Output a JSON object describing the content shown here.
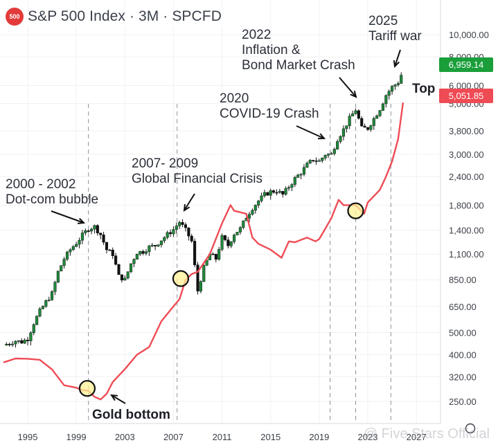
{
  "header": {
    "badge": "500",
    "title": "S&P 500 Index · 3M · SPCFD"
  },
  "price_tags": {
    "spx": {
      "label": "6,959.14",
      "color": "#1a9e3a"
    },
    "gold": {
      "label": "5,051.85",
      "color": "#ef4b55"
    }
  },
  "annotations": {
    "a2025": "2025\nTariff war",
    "top": "Top",
    "a2022": "2022\nInflation &\nBond Market Crash",
    "a2020": "2020\nCOVID-19 Crash",
    "a2007": "2007- 2009\nGlobal Financial Crisis",
    "a2000": "2000 - 2002\nDot-com bubble",
    "gold_bottom": "Gold bottom"
  },
  "watermark": "@ Five Stars Official",
  "icons": [
    "five-hundred-badge-icon",
    "settings-icon"
  ],
  "chart_data": {
    "type": "line",
    "title": "S&P 500 Index · 3M · SPCFD",
    "yscale": "log",
    "ylim": [
      230,
      11500
    ],
    "xlim": [
      1993.0,
      2025.9
    ],
    "y_ticks": [
      10000,
      8000,
      6000,
      5000,
      3800,
      3000,
      2400,
      1800,
      1400,
      1100,
      850,
      650,
      500,
      400,
      320,
      250
    ],
    "y_tick_labels": [
      "10,000.00",
      "8,000.00",
      "6,000.00",
      "5,000.00",
      "3,800.00",
      "3,000.00",
      "2,400.00",
      "1,800.00",
      "1,400.00",
      "1,100.00",
      "850.00",
      "650.00",
      "500.00",
      "400.00",
      "320.00",
      "250.00"
    ],
    "x_ticks": [
      1995,
      1999,
      2003,
      2007,
      2011,
      2015,
      2019,
      2023,
      2027
    ],
    "x_tick_labels": [
      "1995",
      "1999",
      "2003",
      "2007",
      "2011",
      "2015",
      "2019",
      "2023",
      "2027"
    ],
    "grid": true,
    "series": [
      {
        "name": "S&P 500",
        "color": "#222222",
        "style": "candlestick",
        "x": [
          1993.0,
          1993.5,
          1994.0,
          1994.5,
          1995.0,
          1995.5,
          1996.0,
          1996.5,
          1997.0,
          1997.5,
          1998.0,
          1998.5,
          1999.0,
          1999.5,
          2000.0,
          2000.5,
          2001.0,
          2001.5,
          2002.0,
          2002.5,
          2003.0,
          2003.5,
          2004.0,
          2004.5,
          2005.0,
          2005.5,
          2006.0,
          2006.5,
          2007.0,
          2007.5,
          2008.0,
          2008.5,
          2009.0,
          2009.5,
          2010.0,
          2010.5,
          2011.0,
          2011.5,
          2012.0,
          2012.5,
          2013.0,
          2013.5,
          2014.0,
          2014.5,
          2015.0,
          2015.5,
          2016.0,
          2016.5,
          2017.0,
          2017.5,
          2018.0,
          2018.5,
          2019.0,
          2019.5,
          2020.0,
          2020.5,
          2021.0,
          2021.5,
          2022.0,
          2022.5,
          2023.0,
          2023.5,
          2024.0,
          2024.5,
          2025.0,
          2025.5,
          2025.9
        ],
        "values": [
          440,
          450,
          460,
          455,
          470,
          550,
          620,
          680,
          740,
          920,
          1050,
          1150,
          1230,
          1330,
          1420,
          1450,
          1340,
          1150,
          1100,
          880,
          850,
          1000,
          1120,
          1130,
          1180,
          1200,
          1270,
          1340,
          1410,
          1520,
          1400,
          1250,
          760,
          960,
          1100,
          1050,
          1300,
          1200,
          1350,
          1420,
          1600,
          1750,
          1880,
          2000,
          2060,
          2080,
          2000,
          2170,
          2350,
          2500,
          2700,
          2850,
          2800,
          3000,
          3000,
          3500,
          3850,
          4300,
          4700,
          3900,
          3900,
          4300,
          4750,
          5450,
          5900,
          6200,
          6959
        ]
      },
      {
        "name": "Gold",
        "color": "#ef4b55",
        "style": "line",
        "x": [
          1993.0,
          1994.0,
          1995.0,
          1996.0,
          1997.0,
          1998.0,
          1999.0,
          1999.5,
          2000.0,
          2000.5,
          2001.0,
          2001.5,
          2002.0,
          2003.0,
          2004.0,
          2005.0,
          2006.0,
          2007.0,
          2007.5,
          2008.0,
          2008.5,
          2009.0,
          2010.0,
          2011.0,
          2011.7,
          2012.0,
          2013.0,
          2013.5,
          2014.0,
          2015.0,
          2015.9,
          2016.5,
          2017.0,
          2018.0,
          2018.7,
          2019.0,
          2019.5,
          2020.0,
          2020.6,
          2021.0,
          2021.5,
          2022.0,
          2022.7,
          2023.0,
          2024.0,
          2024.5,
          2025.0,
          2025.5,
          2025.9
        ],
        "values": [
          370,
          385,
          384,
          380,
          345,
          294,
          287,
          280,
          278,
          262,
          255,
          270,
          304,
          346,
          400,
          432,
          560,
          650,
          700,
          850,
          900,
          920,
          1100,
          1500,
          1800,
          1700,
          1650,
          1300,
          1220,
          1150,
          1060,
          1250,
          1240,
          1300,
          1250,
          1280,
          1420,
          1580,
          1900,
          1800,
          1800,
          1800,
          1650,
          1850,
          2100,
          2400,
          2800,
          3500,
          5052
        ]
      }
    ],
    "annotations": [
      "2025\nTariff war",
      "Top",
      "2022\nInflation &\nBond Market Crash",
      "2020\nCOVID-19 Crash",
      "2007- 2009\nGlobal Financial Crisis",
      "2000 - 2002\nDot-com bubble",
      "Gold bottom"
    ],
    "event_lines_x": [
      2000.0,
      2007.3,
      2019.9,
      2022.0,
      2024.9
    ]
  }
}
